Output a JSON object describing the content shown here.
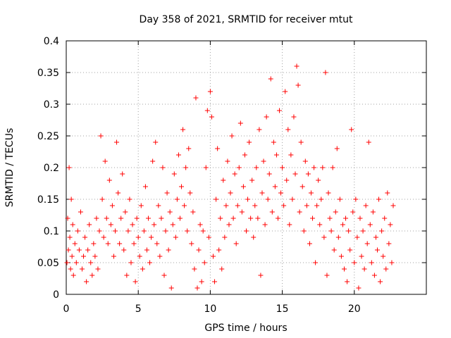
{
  "chart_data": {
    "type": "scatter",
    "title": "Day 358 of 2021, SRMTID for receiver mtut",
    "xlabel": "GPS time / hours",
    "ylabel": "SRMTID / TECUs",
    "xlim": [
      0,
      25
    ],
    "ylim": [
      0,
      0.4
    ],
    "xticks": [
      0,
      5,
      10,
      15,
      20
    ],
    "xtick_labels": [
      "0",
      "5",
      "10",
      "15",
      "20"
    ],
    "yticks": [
      0,
      0.05,
      0.1,
      0.15,
      0.2,
      0.25,
      0.3,
      0.35,
      0.4
    ],
    "ytick_labels": [
      "0",
      "0.05",
      "0.1",
      "0.15",
      "0.2",
      "0.25",
      "0.3",
      "0.35",
      "0.4"
    ],
    "grid": true,
    "marker": "+",
    "color": "#ff0000",
    "series": [
      {
        "name": "SRMTID",
        "points": [
          [
            0.05,
            0.05
          ],
          [
            0.1,
            0.12
          ],
          [
            0.15,
            0.07
          ],
          [
            0.2,
            0.2
          ],
          [
            0.25,
            0.09
          ],
          [
            0.3,
            0.04
          ],
          [
            0.35,
            0.15
          ],
          [
            0.4,
            0.06
          ],
          [
            0.45,
            0.11
          ],
          [
            0.5,
            0.03
          ],
          [
            0.6,
            0.08
          ],
          [
            0.7,
            0.05
          ],
          [
            0.8,
            0.1
          ],
          [
            0.9,
            0.07
          ],
          [
            1.0,
            0.13
          ],
          [
            1.1,
            0.04
          ],
          [
            1.2,
            0.06
          ],
          [
            1.3,
            0.09
          ],
          [
            1.4,
            0.02
          ],
          [
            1.5,
            0.07
          ],
          [
            1.6,
            0.11
          ],
          [
            1.7,
            0.05
          ],
          [
            1.8,
            0.03
          ],
          [
            1.9,
            0.08
          ],
          [
            2.0,
            0.06
          ],
          [
            2.1,
            0.12
          ],
          [
            2.2,
            0.04
          ],
          [
            2.3,
            0.1
          ],
          [
            2.4,
            0.25
          ],
          [
            2.5,
            0.15
          ],
          [
            2.6,
            0.09
          ],
          [
            2.7,
            0.21
          ],
          [
            2.8,
            0.12
          ],
          [
            2.9,
            0.08
          ],
          [
            3.0,
            0.18
          ],
          [
            3.1,
            0.11
          ],
          [
            3.2,
            0.14
          ],
          [
            3.3,
            0.06
          ],
          [
            3.4,
            0.1
          ],
          [
            3.5,
            0.24
          ],
          [
            3.6,
            0.16
          ],
          [
            3.7,
            0.08
          ],
          [
            3.8,
            0.12
          ],
          [
            3.9,
            0.19
          ],
          [
            4.0,
            0.07
          ],
          [
            4.1,
            0.13
          ],
          [
            4.2,
            0.03
          ],
          [
            4.3,
            0.1
          ],
          [
            4.4,
            0.15
          ],
          [
            4.5,
            0.05
          ],
          [
            4.6,
            0.11
          ],
          [
            4.7,
            0.08
          ],
          [
            4.8,
            0.02
          ],
          [
            4.9,
            0.12
          ],
          [
            5.0,
            0.09
          ],
          [
            5.1,
            0.06
          ],
          [
            5.2,
            0.14
          ],
          [
            5.3,
            0.04
          ],
          [
            5.4,
            0.1
          ],
          [
            5.5,
            0.17
          ],
          [
            5.6,
            0.07
          ],
          [
            5.7,
            0.12
          ],
          [
            5.8,
            0.05
          ],
          [
            5.9,
            0.09
          ],
          [
            6.0,
            0.21
          ],
          [
            6.1,
            0.11
          ],
          [
            6.2,
            0.24
          ],
          [
            6.3,
            0.08
          ],
          [
            6.4,
            0.14
          ],
          [
            6.5,
            0.06
          ],
          [
            6.6,
            0.12
          ],
          [
            6.7,
            0.2
          ],
          [
            6.8,
            0.03
          ],
          [
            6.9,
            0.1
          ],
          [
            7.0,
            0.16
          ],
          [
            7.1,
            0.07
          ],
          [
            7.2,
            0.13
          ],
          [
            7.3,
            0.01
          ],
          [
            7.4,
            0.11
          ],
          [
            7.5,
            0.19
          ],
          [
            7.6,
            0.09
          ],
          [
            7.7,
            0.15
          ],
          [
            7.8,
            0.22
          ],
          [
            7.9,
            0.12
          ],
          [
            8.0,
            0.17
          ],
          [
            8.1,
            0.26
          ],
          [
            8.2,
            0.14
          ],
          [
            8.3,
            0.2
          ],
          [
            8.4,
            0.1
          ],
          [
            8.5,
            0.23
          ],
          [
            8.6,
            0.16
          ],
          [
            8.7,
            0.08
          ],
          [
            8.8,
            0.13
          ],
          [
            8.9,
            0.04
          ],
          [
            9.0,
            0.31
          ],
          [
            9.1,
            0.01
          ],
          [
            9.2,
            0.07
          ],
          [
            9.3,
            0.11
          ],
          [
            9.4,
            0.02
          ],
          [
            9.5,
            0.1
          ],
          [
            9.6,
            0.05
          ],
          [
            9.7,
            0.2
          ],
          [
            9.8,
            0.29
          ],
          [
            9.9,
            0.09
          ],
          [
            10.0,
            0.32
          ],
          [
            10.1,
            0.28
          ],
          [
            10.2,
            0.06
          ],
          [
            10.3,
            0.02
          ],
          [
            10.4,
            0.15
          ],
          [
            10.5,
            0.23
          ],
          [
            10.6,
            0.07
          ],
          [
            10.7,
            0.12
          ],
          [
            10.8,
            0.04
          ],
          [
            10.9,
            0.18
          ],
          [
            11.0,
            0.09
          ],
          [
            11.1,
            0.14
          ],
          [
            11.2,
            0.21
          ],
          [
            11.3,
            0.11
          ],
          [
            11.4,
            0.16
          ],
          [
            11.5,
            0.25
          ],
          [
            11.6,
            0.12
          ],
          [
            11.7,
            0.19
          ],
          [
            11.8,
            0.08
          ],
          [
            11.9,
            0.14
          ],
          [
            12.0,
            0.2
          ],
          [
            12.1,
            0.27
          ],
          [
            12.2,
            0.13
          ],
          [
            12.3,
            0.17
          ],
          [
            12.4,
            0.22
          ],
          [
            12.5,
            0.1
          ],
          [
            12.6,
            0.15
          ],
          [
            12.7,
            0.24
          ],
          [
            12.8,
            0.12
          ],
          [
            12.9,
            0.18
          ],
          [
            13.0,
            0.09
          ],
          [
            13.1,
            0.14
          ],
          [
            13.2,
            0.2
          ],
          [
            13.3,
            0.12
          ],
          [
            13.4,
            0.26
          ],
          [
            13.5,
            0.03
          ],
          [
            13.6,
            0.16
          ],
          [
            13.7,
            0.21
          ],
          [
            13.8,
            0.11
          ],
          [
            13.9,
            0.28
          ],
          [
            14.0,
            0.15
          ],
          [
            14.1,
            0.19
          ],
          [
            14.2,
            0.34
          ],
          [
            14.3,
            0.13
          ],
          [
            14.4,
            0.24
          ],
          [
            14.5,
            0.17
          ],
          [
            14.6,
            0.22
          ],
          [
            14.7,
            0.12
          ],
          [
            14.8,
            0.29
          ],
          [
            14.9,
            0.16
          ],
          [
            15.0,
            0.2
          ],
          [
            15.1,
            0.14
          ],
          [
            15.2,
            0.32
          ],
          [
            15.3,
            0.18
          ],
          [
            15.4,
            0.26
          ],
          [
            15.5,
            0.11
          ],
          [
            15.6,
            0.22
          ],
          [
            15.7,
            0.15
          ],
          [
            15.8,
            0.28
          ],
          [
            15.9,
            0.19
          ],
          [
            16.0,
            0.36
          ],
          [
            16.1,
            0.33
          ],
          [
            16.2,
            0.13
          ],
          [
            16.3,
            0.24
          ],
          [
            16.4,
            0.17
          ],
          [
            16.5,
            0.1
          ],
          [
            16.6,
            0.21
          ],
          [
            16.7,
            0.14
          ],
          [
            16.8,
            0.19
          ],
          [
            16.9,
            0.08
          ],
          [
            17.0,
            0.16
          ],
          [
            17.1,
            0.12
          ],
          [
            17.2,
            0.2
          ],
          [
            17.3,
            0.05
          ],
          [
            17.4,
            0.14
          ],
          [
            17.5,
            0.18
          ],
          [
            17.6,
            0.11
          ],
          [
            17.7,
            0.15
          ],
          [
            17.8,
            0.2
          ],
          [
            17.9,
            0.09
          ],
          [
            18.0,
            0.35
          ],
          [
            18.1,
            0.03
          ],
          [
            18.2,
            0.16
          ],
          [
            18.3,
            0.12
          ],
          [
            18.4,
            0.1
          ],
          [
            18.5,
            0.2
          ],
          [
            18.6,
            0.07
          ],
          [
            18.7,
            0.13
          ],
          [
            18.8,
            0.23
          ],
          [
            18.9,
            0.09
          ],
          [
            19.0,
            0.15
          ],
          [
            19.1,
            0.06
          ],
          [
            19.2,
            0.11
          ],
          [
            19.3,
            0.04
          ],
          [
            19.4,
            0.12
          ],
          [
            19.5,
            0.02
          ],
          [
            19.6,
            0.1
          ],
          [
            19.7,
            0.07
          ],
          [
            19.8,
            0.26
          ],
          [
            19.9,
            0.13
          ],
          [
            20.0,
            0.05
          ],
          [
            20.1,
            0.15
          ],
          [
            20.2,
            0.09
          ],
          [
            20.3,
            0.01
          ],
          [
            20.4,
            0.12
          ],
          [
            20.5,
            0.06
          ],
          [
            20.6,
            0.1
          ],
          [
            20.7,
            0.04
          ],
          [
            20.8,
            0.14
          ],
          [
            20.9,
            0.08
          ],
          [
            21.0,
            0.24
          ],
          [
            21.1,
            0.11
          ],
          [
            21.2,
            0.05
          ],
          [
            21.3,
            0.13
          ],
          [
            21.4,
            0.03
          ],
          [
            21.5,
            0.09
          ],
          [
            21.6,
            0.07
          ],
          [
            21.7,
            0.15
          ],
          [
            21.8,
            0.02
          ],
          [
            21.9,
            0.1
          ],
          [
            22.0,
            0.06
          ],
          [
            22.1,
            0.12
          ],
          [
            22.2,
            0.04
          ],
          [
            22.3,
            0.16
          ],
          [
            22.4,
            0.08
          ],
          [
            22.5,
            0.11
          ],
          [
            22.6,
            0.05
          ],
          [
            22.7,
            0.14
          ]
        ]
      }
    ]
  }
}
